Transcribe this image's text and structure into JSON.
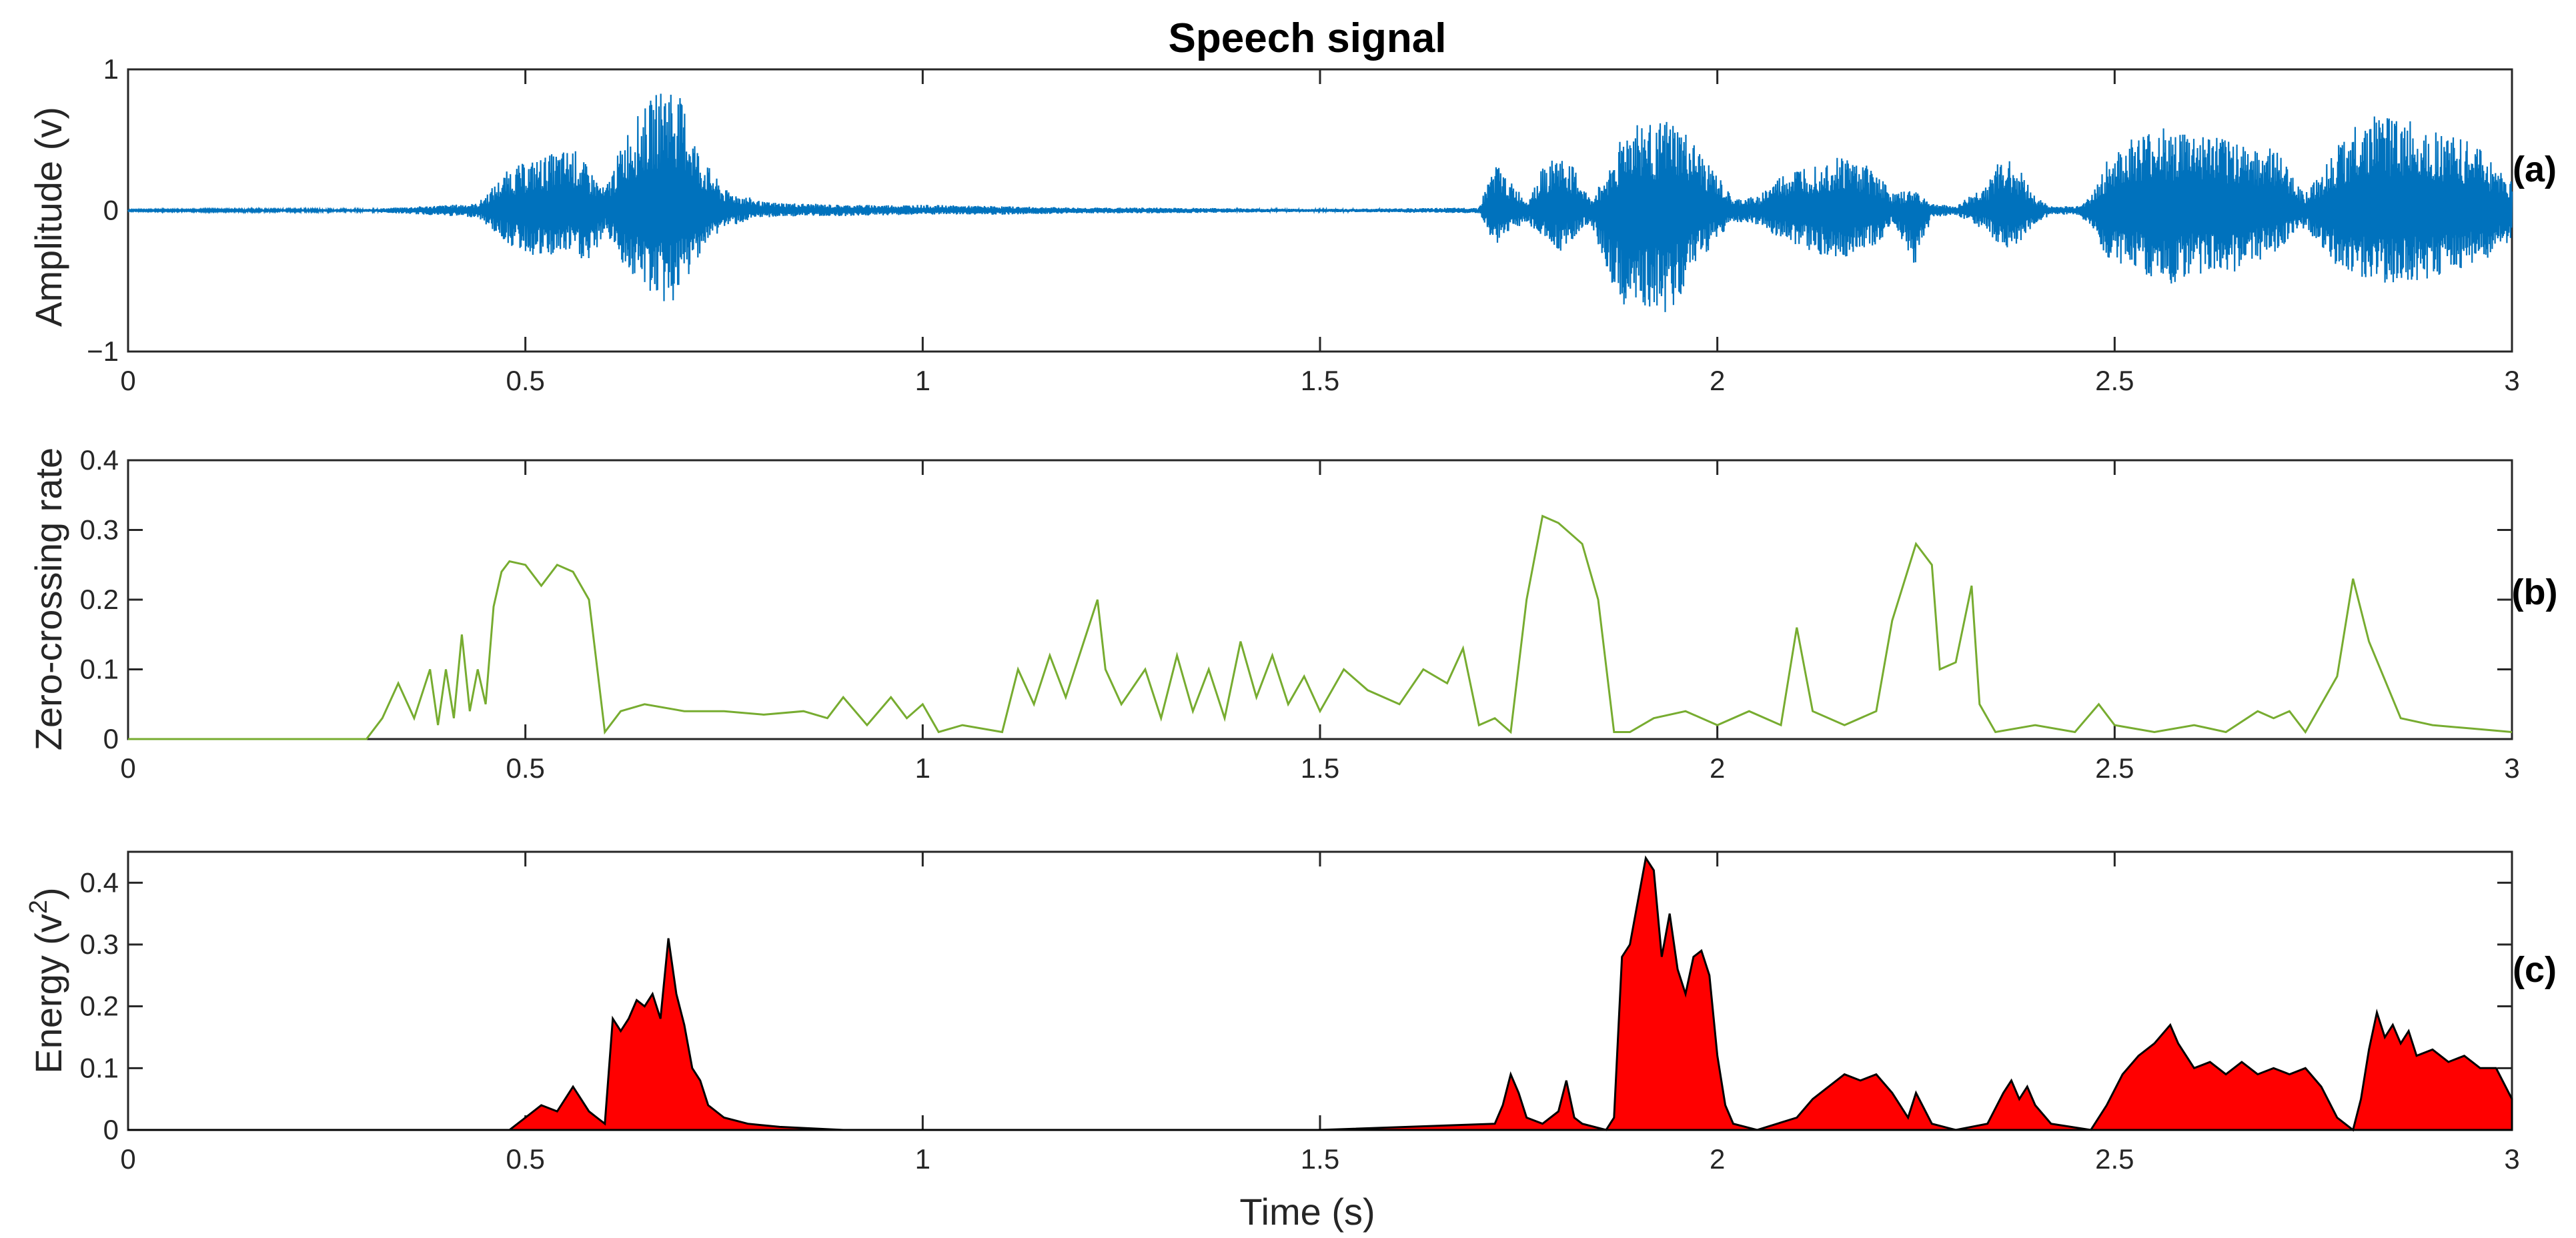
{
  "chart_data": [
    {
      "type": "line",
      "panel": "a",
      "title": "Speech signal",
      "ylabel": "Amplitude (v)",
      "xlabel": "",
      "xlim": [
        0,
        3
      ],
      "ylim": [
        -1,
        1
      ],
      "x_ticks": [
        "0",
        "0.5",
        "1",
        "1.5",
        "2",
        "2.5",
        "3"
      ],
      "y_ticks": [
        "1",
        "0",
        "−1"
      ],
      "panel_label": "(a)",
      "color": "#0072BD",
      "envelope": {
        "x": [
          0,
          0.3,
          0.44,
          0.48,
          0.52,
          0.56,
          0.58,
          0.6,
          0.63,
          0.66,
          0.68,
          0.7,
          0.72,
          0.75,
          0.8,
          0.85,
          0.9,
          1.0,
          1.1,
          1.2,
          1.3,
          1.5,
          1.7,
          1.72,
          1.74,
          1.76,
          1.78,
          1.8,
          1.82,
          1.84,
          1.86,
          1.88,
          1.9,
          1.92,
          1.94,
          1.96,
          1.98,
          2.0,
          2.02,
          2.05,
          2.08,
          2.12,
          2.16,
          2.2,
          2.22,
          2.25,
          2.27,
          2.3,
          2.34,
          2.36,
          2.38,
          2.4,
          2.42,
          2.45,
          2.47,
          2.49,
          2.52,
          2.56,
          2.6,
          2.65,
          2.7,
          2.74,
          2.78,
          2.8,
          2.84,
          2.88,
          2.92,
          2.96,
          3.0
        ],
        "upper": [
          0.005,
          0.01,
          0.05,
          0.3,
          0.38,
          0.45,
          0.3,
          0.15,
          0.6,
          0.8,
          0.95,
          0.75,
          0.4,
          0.15,
          0.06,
          0.05,
          0.04,
          0.04,
          0.03,
          0.02,
          0.02,
          0.01,
          0.02,
          0.35,
          0.2,
          0.08,
          0.3,
          0.4,
          0.3,
          0.08,
          0.25,
          0.55,
          0.65,
          0.6,
          0.65,
          0.55,
          0.4,
          0.25,
          0.08,
          0.1,
          0.25,
          0.35,
          0.4,
          0.3,
          0.12,
          0.15,
          0.05,
          0.03,
          0.2,
          0.4,
          0.3,
          0.1,
          0.03,
          0.03,
          0.1,
          0.35,
          0.5,
          0.6,
          0.55,
          0.5,
          0.45,
          0.12,
          0.45,
          0.6,
          0.7,
          0.62,
          0.55,
          0.45,
          0.2
        ],
        "lower": [
          -0.005,
          -0.01,
          -0.05,
          -0.25,
          -0.35,
          -0.3,
          -0.4,
          -0.15,
          -0.45,
          -0.6,
          -0.7,
          -0.55,
          -0.3,
          -0.12,
          -0.05,
          -0.04,
          -0.04,
          -0.03,
          -0.03,
          -0.02,
          -0.02,
          -0.01,
          -0.02,
          -0.25,
          -0.15,
          -0.08,
          -0.2,
          -0.3,
          -0.2,
          -0.08,
          -0.4,
          -0.7,
          -0.8,
          -0.7,
          -0.75,
          -0.55,
          -0.35,
          -0.2,
          -0.08,
          -0.1,
          -0.2,
          -0.3,
          -0.35,
          -0.25,
          -0.1,
          -0.4,
          -0.05,
          -0.03,
          -0.15,
          -0.3,
          -0.25,
          -0.1,
          -0.03,
          -0.03,
          -0.1,
          -0.35,
          -0.4,
          -0.55,
          -0.45,
          -0.45,
          -0.3,
          -0.12,
          -0.4,
          -0.45,
          -0.55,
          -0.5,
          -0.45,
          -0.4,
          -0.2
        ]
      }
    },
    {
      "type": "line",
      "panel": "b",
      "ylabel": "Zero-crossing rate",
      "xlabel": "",
      "xlim": [
        0,
        3
      ],
      "ylim": [
        0,
        0.4
      ],
      "x_ticks": [
        "0",
        "0.5",
        "1",
        "1.5",
        "2",
        "2.5",
        "3"
      ],
      "y_ticks": [
        "0.4",
        "0.3",
        "0.2",
        "0.1",
        "0"
      ],
      "panel_label": "(b)",
      "color": "#77AC30",
      "x": [
        0,
        0.3,
        0.32,
        0.34,
        0.36,
        0.38,
        0.39,
        0.4,
        0.41,
        0.42,
        0.43,
        0.44,
        0.45,
        0.46,
        0.47,
        0.48,
        0.5,
        0.52,
        0.54,
        0.56,
        0.58,
        0.6,
        0.62,
        0.65,
        0.7,
        0.75,
        0.8,
        0.85,
        0.88,
        0.9,
        0.93,
        0.96,
        0.98,
        1.0,
        1.02,
        1.05,
        1.1,
        1.12,
        1.14,
        1.16,
        1.18,
        1.2,
        1.22,
        1.23,
        1.25,
        1.28,
        1.3,
        1.32,
        1.34,
        1.36,
        1.38,
        1.4,
        1.42,
        1.44,
        1.46,
        1.48,
        1.5,
        1.53,
        1.56,
        1.6,
        1.63,
        1.66,
        1.68,
        1.7,
        1.72,
        1.74,
        1.76,
        1.78,
        1.8,
        1.83,
        1.85,
        1.87,
        1.89,
        1.92,
        1.96,
        2.0,
        2.04,
        2.08,
        2.1,
        2.12,
        2.16,
        2.2,
        2.22,
        2.25,
        2.27,
        2.28,
        2.3,
        2.32,
        2.33,
        2.35,
        2.4,
        2.45,
        2.48,
        2.5,
        2.55,
        2.6,
        2.64,
        2.68,
        2.7,
        2.72,
        2.74,
        2.76,
        2.78,
        2.8,
        2.82,
        2.86,
        2.9,
        2.95,
        3.0
      ],
      "y": [
        0,
        0,
        0.03,
        0.08,
        0.03,
        0.1,
        0.02,
        0.1,
        0.03,
        0.15,
        0.04,
        0.1,
        0.05,
        0.19,
        0.24,
        0.255,
        0.25,
        0.22,
        0.25,
        0.24,
        0.2,
        0.01,
        0.04,
        0.05,
        0.04,
        0.04,
        0.035,
        0.04,
        0.03,
        0.06,
        0.02,
        0.06,
        0.03,
        0.05,
        0.01,
        0.02,
        0.01,
        0.1,
        0.05,
        0.12,
        0.06,
        0.13,
        0.2,
        0.1,
        0.05,
        0.1,
        0.03,
        0.12,
        0.04,
        0.1,
        0.03,
        0.14,
        0.06,
        0.12,
        0.05,
        0.09,
        0.04,
        0.1,
        0.07,
        0.05,
        0.1,
        0.08,
        0.13,
        0.02,
        0.03,
        0.01,
        0.2,
        0.32,
        0.31,
        0.28,
        0.2,
        0.01,
        0.01,
        0.03,
        0.04,
        0.02,
        0.04,
        0.02,
        0.16,
        0.04,
        0.02,
        0.04,
        0.17,
        0.28,
        0.25,
        0.1,
        0.11,
        0.22,
        0.05,
        0.01,
        0.02,
        0.01,
        0.05,
        0.02,
        0.01,
        0.02,
        0.01,
        0.04,
        0.03,
        0.04,
        0.01,
        0.05,
        0.09,
        0.23,
        0.14,
        0.03,
        0.02,
        0.015,
        0.01
      ]
    },
    {
      "type": "area",
      "panel": "c",
      "ylabel": "Energy (v²)",
      "ylabel_base": "Energy (v",
      "ylabel_sup": "2",
      "ylabel_end": ")",
      "xlabel": "Time (s)",
      "xlim": [
        0,
        3
      ],
      "ylim": [
        0,
        0.45
      ],
      "x_ticks": [
        "0",
        "0.5",
        "1",
        "1.5",
        "2",
        "2.5",
        "3"
      ],
      "y_ticks": [
        "0.4",
        "0.3",
        "0.2",
        "0.1",
        "0"
      ],
      "panel_label": "(c)",
      "fill": "#FF0000",
      "stroke": "#000000",
      "x": [
        0,
        0.48,
        0.5,
        0.52,
        0.54,
        0.55,
        0.56,
        0.57,
        0.58,
        0.59,
        0.6,
        0.61,
        0.62,
        0.63,
        0.64,
        0.65,
        0.66,
        0.67,
        0.68,
        0.69,
        0.7,
        0.71,
        0.72,
        0.73,
        0.75,
        0.78,
        0.82,
        0.9,
        1.5,
        1.72,
        1.73,
        1.74,
        1.75,
        1.76,
        1.78,
        1.8,
        1.81,
        1.82,
        1.83,
        1.86,
        1.87,
        1.88,
        1.89,
        1.9,
        1.91,
        1.92,
        1.93,
        1.94,
        1.95,
        1.96,
        1.97,
        1.98,
        1.99,
        2.0,
        2.01,
        2.02,
        2.05,
        2.1,
        2.12,
        2.14,
        2.16,
        2.18,
        2.2,
        2.22,
        2.24,
        2.25,
        2.27,
        2.3,
        2.34,
        2.36,
        2.37,
        2.38,
        2.39,
        2.4,
        2.42,
        2.47,
        2.49,
        2.51,
        2.53,
        2.55,
        2.57,
        2.58,
        2.6,
        2.62,
        2.64,
        2.66,
        2.68,
        2.7,
        2.72,
        2.74,
        2.76,
        2.78,
        2.8,
        2.81,
        2.82,
        2.83,
        2.84,
        2.85,
        2.86,
        2.87,
        2.88,
        2.9,
        2.92,
        2.94,
        2.96,
        2.98,
        3.0
      ],
      "y": [
        0,
        0,
        0.02,
        0.04,
        0.03,
        0.05,
        0.07,
        0.05,
        0.03,
        0.02,
        0.01,
        0.18,
        0.16,
        0.18,
        0.21,
        0.2,
        0.22,
        0.18,
        0.31,
        0.22,
        0.17,
        0.1,
        0.08,
        0.04,
        0.02,
        0.01,
        0.005,
        0,
        0,
        0.01,
        0.04,
        0.09,
        0.06,
        0.02,
        0.01,
        0.03,
        0.08,
        0.02,
        0.01,
        0,
        0.02,
        0.28,
        0.3,
        0.37,
        0.44,
        0.42,
        0.28,
        0.35,
        0.26,
        0.22,
        0.28,
        0.29,
        0.25,
        0.12,
        0.04,
        0.01,
        0,
        0.02,
        0.05,
        0.07,
        0.09,
        0.08,
        0.09,
        0.06,
        0.02,
        0.06,
        0.01,
        0,
        0.01,
        0.06,
        0.08,
        0.05,
        0.07,
        0.04,
        0.01,
        0,
        0.04,
        0.09,
        0.12,
        0.14,
        0.17,
        0.14,
        0.1,
        0.11,
        0.09,
        0.11,
        0.09,
        0.1,
        0.09,
        0.1,
        0.07,
        0.02,
        0,
        0.05,
        0.13,
        0.19,
        0.15,
        0.17,
        0.14,
        0.16,
        0.12,
        0.13,
        0.11,
        0.12,
        0.1,
        0.1,
        0.05
      ]
    }
  ]
}
